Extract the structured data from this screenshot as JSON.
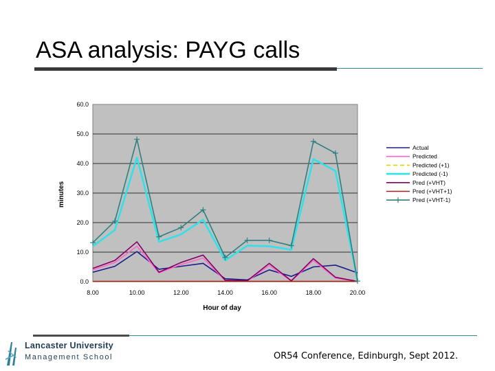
{
  "slide": {
    "title": "ASA analysis: PAYG calls",
    "footer": "OR54 Conference, Edinburgh, Sept 2012."
  },
  "logo": {
    "name": "Lancaster University",
    "sub": "Management School"
  },
  "chart_data": {
    "type": "line",
    "xlabel": "Hour of day",
    "ylabel": "minutes",
    "ylim": [
      0,
      60
    ],
    "yticks": [
      "0.0",
      "10.0",
      "20.0",
      "30.0",
      "40.0",
      "50.0",
      "60.0"
    ],
    "xticks": [
      "8.00",
      "10.00",
      "12.00",
      "14.00",
      "16.00",
      "18.00",
      "20.00"
    ],
    "x": [
      8,
      9,
      10,
      11,
      12,
      13,
      14,
      15,
      16,
      17,
      18,
      19,
      20
    ],
    "legend_position": "right",
    "grid": true,
    "series": [
      {
        "name": "Actual",
        "color": "#1a1a8c",
        "dash": "",
        "marker": "",
        "values": [
          3.2,
          5.2,
          10.2,
          4.2,
          5.2,
          6.2,
          1.0,
          0.6,
          4.0,
          1.8,
          5.0,
          5.6,
          3.0
        ]
      },
      {
        "name": "Predicted",
        "color": "#ff66cc",
        "dash": "",
        "marker": "",
        "values": [
          4.0,
          6.5,
          12.0,
          3.0,
          5.8,
          8.0,
          0.4,
          0.2,
          5.5,
          0.2,
          7.2,
          1.2,
          0.1
        ]
      },
      {
        "name": "Predicted (+1)",
        "color": "#d8d800",
        "dash": "6,4",
        "marker": "",
        "values": [
          0.1,
          0.1,
          0.1,
          0.1,
          0.1,
          0.1,
          0.1,
          0.1,
          0.1,
          0.1,
          0.1,
          0.1,
          0.1
        ]
      },
      {
        "name": "Predicted (-1)",
        "color": "#33e0e8",
        "dash": "",
        "marker": "",
        "values": [
          12.0,
          17.5,
          42.0,
          13.5,
          16.0,
          21.0,
          7.2,
          12.2,
          12.0,
          10.8,
          41.5,
          37.5,
          0.5
        ]
      },
      {
        "name": "Pred (+VHT)",
        "color": "#800060",
        "dash": "",
        "marker": "",
        "values": [
          4.5,
          7.2,
          13.5,
          3.2,
          6.5,
          9.0,
          0.5,
          0.3,
          6.2,
          0.3,
          7.8,
          1.5,
          0.1
        ]
      },
      {
        "name": "Pred (+VHT+1)",
        "color": "#a02020",
        "dash": "",
        "marker": "",
        "values": [
          0.1,
          0.1,
          0.1,
          0.1,
          0.1,
          0.1,
          0.1,
          0.1,
          0.1,
          0.1,
          0.1,
          0.1,
          0.1
        ]
      },
      {
        "name": "Pred (+VHT-1)",
        "color": "#2e7f7f",
        "dash": "",
        "marker": "+",
        "values": [
          13.2,
          20.5,
          48.2,
          15.2,
          18.3,
          24.3,
          8.2,
          14.0,
          14.0,
          12.2,
          47.5,
          43.5,
          0.2
        ]
      }
    ]
  }
}
